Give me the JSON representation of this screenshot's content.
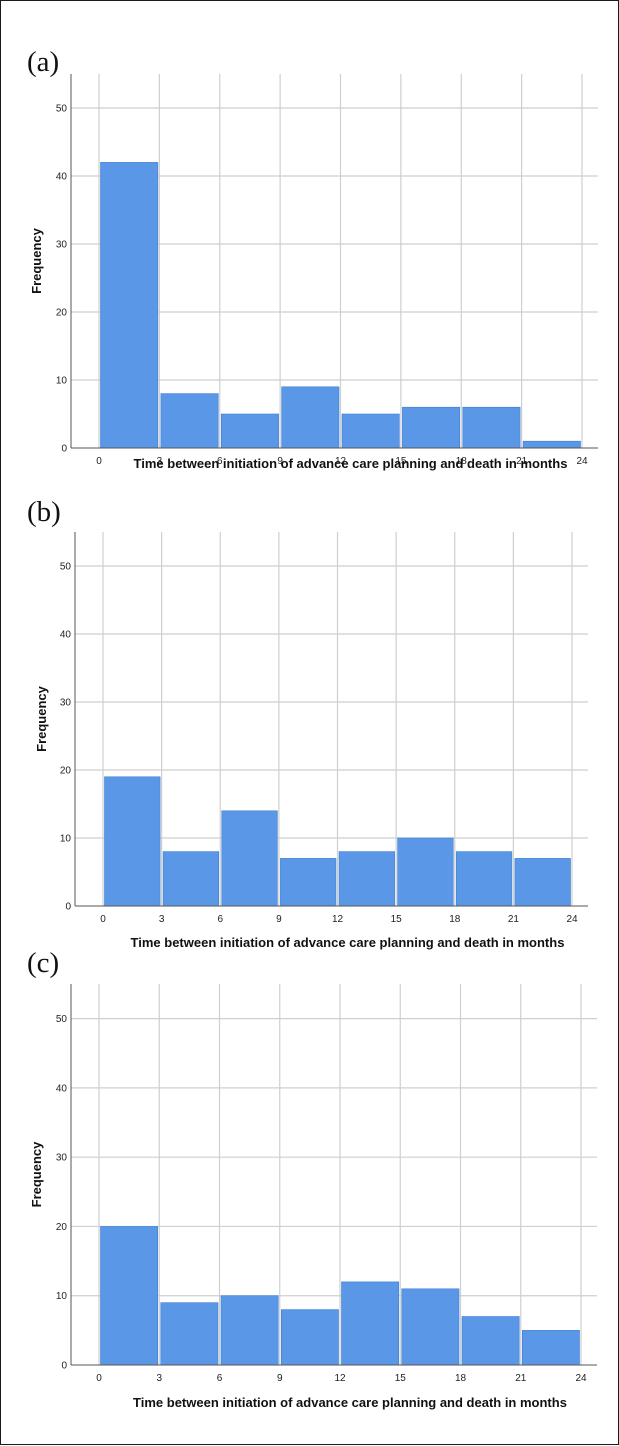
{
  "chart_data": [
    {
      "type": "bar",
      "panel_label": "(a)",
      "categories": [
        "0–3",
        "3–6",
        "6–9",
        "9–12",
        "12–15",
        "15–18",
        "18–21",
        "21–24"
      ],
      "bins": [
        [
          0,
          3
        ],
        [
          3,
          6
        ],
        [
          6,
          9
        ],
        [
          9,
          12
        ],
        [
          12,
          15
        ],
        [
          15,
          18
        ],
        [
          18,
          21
        ],
        [
          21,
          24
        ]
      ],
      "values": [
        42,
        8,
        5,
        9,
        5,
        6,
        6,
        1
      ],
      "xticks": [
        0,
        3,
        6,
        9,
        12,
        15,
        18,
        21,
        24
      ],
      "yticks": [
        0,
        10,
        20,
        30,
        40,
        50
      ],
      "xlabel": "Time between initiation of advance care planning and death in months",
      "ylabel": "Frequency",
      "xlim": [
        0,
        24
      ],
      "ylim": [
        0,
        55
      ],
      "grid": true,
      "bar_color": "#5a97e6"
    },
    {
      "type": "bar",
      "panel_label": "(b)",
      "categories": [
        "0–3",
        "3–6",
        "6–9",
        "9–12",
        "12–15",
        "15–18",
        "18–21",
        "21–24"
      ],
      "bins": [
        [
          0,
          3
        ],
        [
          3,
          6
        ],
        [
          6,
          9
        ],
        [
          9,
          12
        ],
        [
          12,
          15
        ],
        [
          15,
          18
        ],
        [
          18,
          21
        ],
        [
          21,
          24
        ]
      ],
      "values": [
        19,
        8,
        14,
        7,
        8,
        10,
        8,
        7
      ],
      "xticks": [
        0,
        3,
        6,
        9,
        12,
        15,
        18,
        21,
        24
      ],
      "yticks": [
        0,
        10,
        20,
        30,
        40,
        50
      ],
      "xlabel": "Time between initiation of advance care planning and death in months",
      "ylabel": "Frequency",
      "xlim": [
        0,
        24
      ],
      "ylim": [
        0,
        55
      ],
      "grid": true,
      "bar_color": "#5a97e6"
    },
    {
      "type": "bar",
      "panel_label": "(c)",
      "categories": [
        "0–3",
        "3–6",
        "6–9",
        "9–12",
        "12–15",
        "15–18",
        "18–21",
        "21–24"
      ],
      "bins": [
        [
          0,
          3
        ],
        [
          3,
          6
        ],
        [
          6,
          9
        ],
        [
          9,
          12
        ],
        [
          12,
          15
        ],
        [
          15,
          18
        ],
        [
          18,
          21
        ],
        [
          21,
          24
        ]
      ],
      "values": [
        20,
        9,
        10,
        8,
        12,
        11,
        7,
        5
      ],
      "xticks": [
        0,
        3,
        6,
        9,
        12,
        15,
        18,
        21,
        24
      ],
      "yticks": [
        0,
        10,
        20,
        30,
        40,
        50
      ],
      "xlabel": "Time between initiation of advance care planning and death in months",
      "ylabel": "Frequency",
      "xlim": [
        0,
        24
      ],
      "ylim": [
        0,
        55
      ],
      "grid": true,
      "bar_color": "#5a97e6"
    }
  ]
}
